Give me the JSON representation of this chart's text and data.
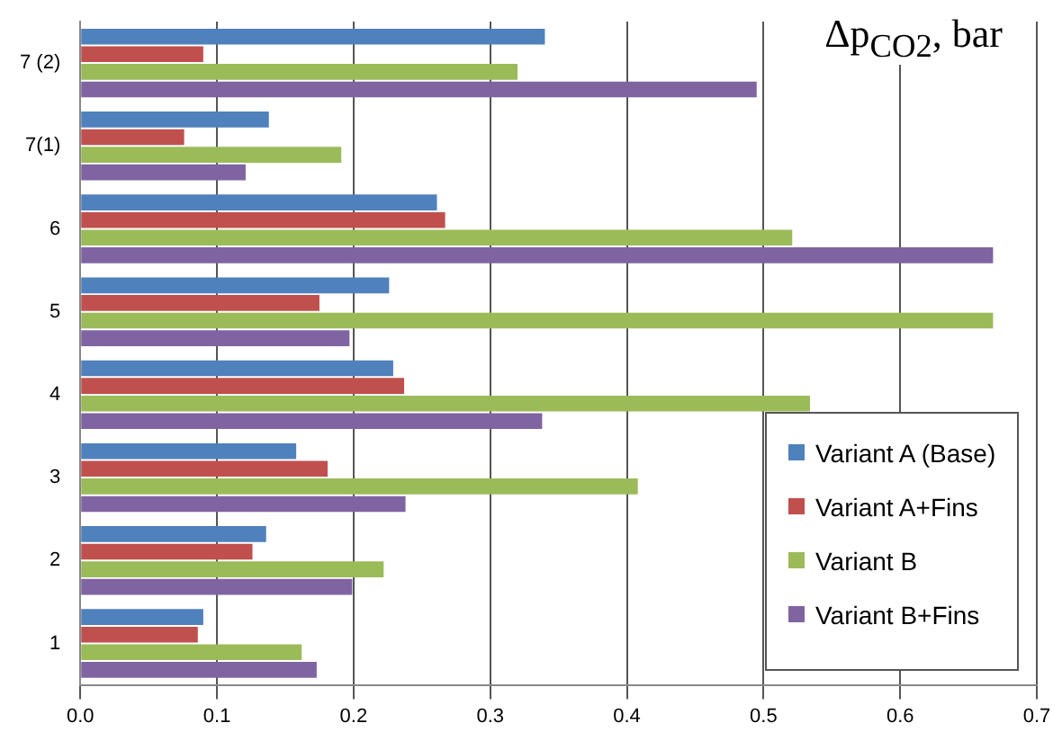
{
  "chart_data": {
    "type": "bar",
    "orientation": "horizontal",
    "title": "Δp$_{CO2}$, bar",
    "categories": [
      "7 (2)",
      "7(1)",
      "6",
      "5",
      "4",
      "3",
      "2",
      "1"
    ],
    "series": [
      {
        "name": "Variant A (Base)",
        "color": "#4f81bd",
        "values": [
          0.34,
          0.138,
          0.261,
          0.226,
          0.229,
          0.158,
          0.136,
          0.09
        ]
      },
      {
        "name": "Variant A+Fins",
        "color": "#c0504d",
        "values": [
          0.09,
          0.076,
          0.267,
          0.175,
          0.237,
          0.181,
          0.126,
          0.086
        ]
      },
      {
        "name": "Variant B",
        "color": "#9bbb59",
        "values": [
          0.32,
          0.191,
          0.521,
          0.668,
          0.534,
          0.408,
          0.222,
          0.162
        ]
      },
      {
        "name": "Variant B+Fins",
        "color": "#8064a2",
        "values": [
          0.495,
          0.121,
          0.668,
          0.197,
          0.338,
          0.238,
          0.199,
          0.173
        ]
      }
    ],
    "xlim": [
      0,
      0.7
    ],
    "xticks": [
      {
        "value": 0,
        "label": "0.0"
      },
      {
        "value": 0.1,
        "label": "0.1"
      },
      {
        "value": 0.2,
        "label": "0.2"
      },
      {
        "value": 0.3,
        "label": "0.3"
      },
      {
        "value": 0.4,
        "label": "0.4"
      },
      {
        "value": 0.5,
        "label": "0.5"
      },
      {
        "value": 0.6,
        "label": "0.6"
      },
      {
        "value": 0.7,
        "label": "0.7"
      }
    ],
    "grid": "x",
    "legend": "bottom right"
  }
}
